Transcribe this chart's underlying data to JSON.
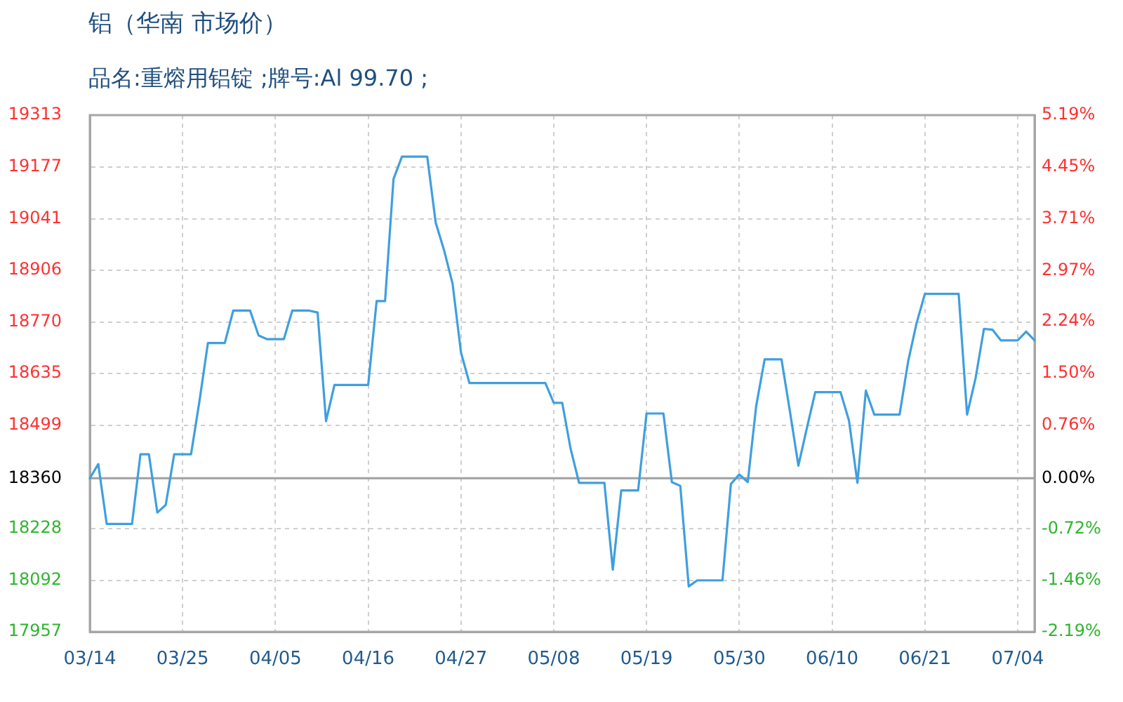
{
  "chart_data": {
    "type": "line",
    "title": "铝（华南 市场价）",
    "subtitle": "品名:重熔用铝锭 ;牌号:Al 99.70 ;",
    "categories": [
      "03/14",
      null,
      null,
      null,
      null,
      null,
      null,
      null,
      null,
      null,
      null,
      "03/25",
      null,
      null,
      null,
      null,
      null,
      null,
      null,
      null,
      null,
      null,
      "04/05",
      null,
      null,
      null,
      null,
      null,
      null,
      null,
      null,
      null,
      null,
      "04/16",
      null,
      null,
      null,
      null,
      null,
      null,
      null,
      null,
      null,
      null,
      "04/27",
      null,
      null,
      null,
      null,
      null,
      null,
      null,
      null,
      null,
      null,
      "05/08",
      null,
      null,
      null,
      null,
      null,
      null,
      null,
      null,
      null,
      null,
      "05/19",
      null,
      null,
      null,
      null,
      null,
      null,
      null,
      null,
      null,
      null,
      "05/30",
      null,
      null,
      null,
      null,
      null,
      null,
      null,
      null,
      null,
      null,
      "06/10",
      null,
      null,
      null,
      null,
      null,
      null,
      null,
      null,
      null,
      null,
      "06/21",
      null,
      null,
      null,
      null,
      null,
      null,
      null,
      null,
      null,
      null,
      "07/04",
      null,
      null
    ],
    "values": [
      18360,
      18397,
      18240,
      18240,
      18240,
      18240,
      18423,
      18423,
      18270,
      18290,
      18423,
      18423,
      18423,
      18563,
      18715,
      18715,
      18715,
      18800,
      18800,
      18800,
      18735,
      18725,
      18725,
      18725,
      18800,
      18800,
      18800,
      18795,
      18510,
      18605,
      18605,
      18605,
      18605,
      18605,
      18825,
      18825,
      19145,
      19204,
      19204,
      19204,
      19204,
      19031,
      18958,
      18871,
      18690,
      18610,
      18610,
      18610,
      18610,
      18610,
      18610,
      18610,
      18610,
      18610,
      18610,
      18558,
      18558,
      18437,
      18348,
      18348,
      18348,
      18348,
      18120,
      18328,
      18328,
      18328,
      18530,
      18530,
      18530,
      18350,
      18340,
      18076,
      18092,
      18092,
      18092,
      18092,
      18345,
      18370,
      18350,
      18550,
      18672,
      18672,
      18672,
      18535,
      18393,
      18491,
      18586,
      18586,
      18586,
      18586,
      18511,
      18348,
      18590,
      18527,
      18527,
      18527,
      18527,
      18665,
      18766,
      18844,
      18844,
      18844,
      18844,
      18844,
      18527,
      18622,
      18752,
      18750,
      18722,
      18722,
      18722,
      18745,
      18722
    ],
    "color": "#3f9fdf",
    "ylim": [
      17957,
      19313
    ],
    "yticks": [
      17957,
      18092,
      18228,
      18360,
      18499,
      18635,
      18770,
      18906,
      19041,
      19177,
      19313
    ],
    "y2lim": [
      -2.19,
      5.19
    ],
    "y2ticks": [
      {
        "value": -2.19,
        "label": "-2.19%"
      },
      {
        "value": -1.46,
        "label": "-1.46%"
      },
      {
        "value": -0.72,
        "label": "-0.72%"
      },
      {
        "value": 0,
        "label": "0.00%"
      },
      {
        "value": 0.76,
        "label": "0.76%"
      },
      {
        "value": 1.5,
        "label": "1.50%"
      },
      {
        "value": 2.24,
        "label": "2.24%"
      },
      {
        "value": 2.97,
        "label": "2.97%"
      },
      {
        "value": 3.71,
        "label": "3.71%"
      },
      {
        "value": 4.45,
        "label": "4.45%"
      },
      {
        "value": 5.19,
        "label": "5.19%"
      }
    ],
    "ref_lines": [
      {
        "axis": "y",
        "value": 18360,
        "color": "#a0a0a0"
      }
    ],
    "grid": true
  }
}
